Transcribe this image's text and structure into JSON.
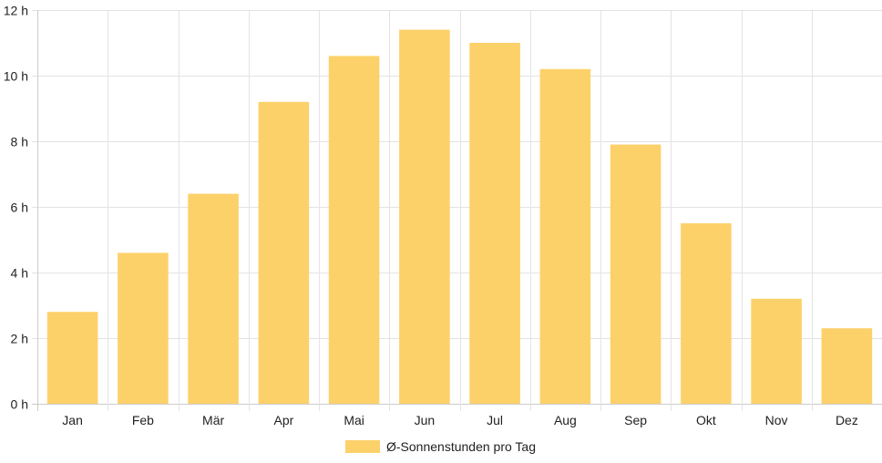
{
  "chart_data": {
    "type": "bar",
    "categories": [
      "Jan",
      "Feb",
      "Mär",
      "Apr",
      "Mai",
      "Jun",
      "Jul",
      "Aug",
      "Sep",
      "Okt",
      "Nov",
      "Dez"
    ],
    "series": [
      {
        "name": "Ø-Sonnenstunden pro Tag",
        "values": [
          2.8,
          4.6,
          6.4,
          9.2,
          10.6,
          11.4,
          11.0,
          10.2,
          7.9,
          5.5,
          3.2,
          2.3
        ],
        "color": "#fdd16a"
      }
    ],
    "y_ticks": [
      {
        "value": 0,
        "label": "0 h"
      },
      {
        "value": 2,
        "label": "2 h"
      },
      {
        "value": 4,
        "label": "4 h"
      },
      {
        "value": 6,
        "label": "6 h"
      },
      {
        "value": 8,
        "label": "8 h"
      },
      {
        "value": 10,
        "label": "10 h"
      },
      {
        "value": 12,
        "label": "12 h"
      }
    ],
    "ylim": [
      0,
      12
    ],
    "grid": true,
    "legend_position": "bottom",
    "title": "",
    "xlabel": "",
    "ylabel": ""
  },
  "colors": {
    "grid": "#e3e3e3",
    "axis": "#cccccc",
    "text": "#222222"
  }
}
